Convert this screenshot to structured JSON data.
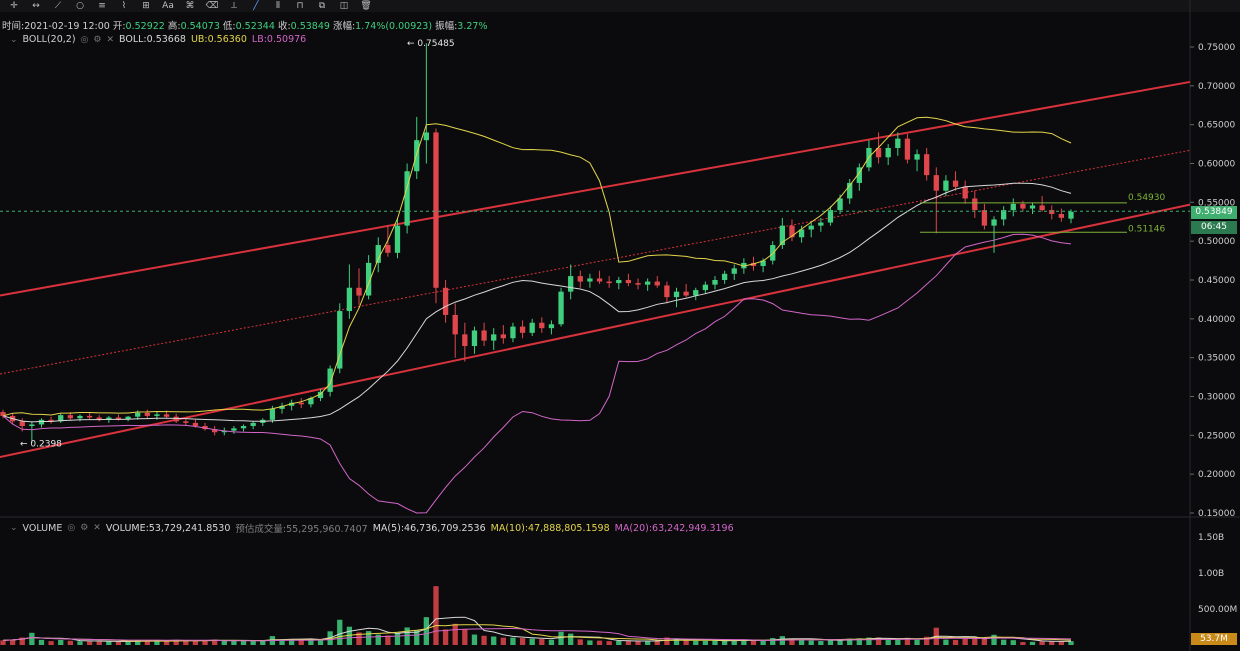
{
  "toolbar": {
    "tools": [
      {
        "name": "crosshair-icon",
        "glyph": "✛"
      },
      {
        "name": "horizontal-line-icon",
        "glyph": "↔"
      },
      {
        "name": "trend-line-icon",
        "glyph": "⟋"
      },
      {
        "name": "circle-icon",
        "glyph": "○"
      },
      {
        "name": "fib-icon",
        "glyph": "≡"
      },
      {
        "name": "wave-icon",
        "glyph": "⌇"
      },
      {
        "name": "measure-icon",
        "glyph": "⊞"
      },
      {
        "name": "text-icon",
        "glyph": "Aa"
      },
      {
        "name": "pattern-icon",
        "glyph": "⌘"
      },
      {
        "name": "eraser-icon",
        "glyph": "⌫"
      },
      {
        "name": "ruler-icon",
        "glyph": "⟂"
      },
      {
        "name": "line-tool-icon",
        "glyph": "╱"
      },
      {
        "name": "candles-icon",
        "glyph": "⦀"
      },
      {
        "name": "lock-icon",
        "glyph": "⊓"
      },
      {
        "name": "copy-icon",
        "glyph": "⧉"
      },
      {
        "name": "layers-icon",
        "glyph": "◫"
      },
      {
        "name": "trash-icon",
        "glyph": "🗑"
      }
    ]
  },
  "ohlc": {
    "time_label": "时间:",
    "time": "2021-02-19 12:00",
    "open_label": "开:",
    "open": "0.52922",
    "high_label": "高:",
    "high": "0.54073",
    "low_label": "低:",
    "low": "0.52344",
    "close_label": "收:",
    "close": "0.53849",
    "change_label": "涨幅:",
    "change": "1.74%(0.00923)",
    "amp_label": "振幅:",
    "amp": "3.27%"
  },
  "boll": {
    "name": "BOLL(20,2)",
    "boll_label": "BOLL:",
    "boll": "0.53668",
    "ub_label": "UB:",
    "ub": "0.56360",
    "lb_label": "LB:",
    "lb": "0.50976"
  },
  "volume": {
    "name": "VOLUME",
    "vol_label": "VOLUME:",
    "vol": "53,729,241.8530",
    "est_label": "预估成交量:",
    "est": "55,295,960.7407",
    "ma5_label": "MA(5):",
    "ma5": "46,736,709.2536",
    "ma10_label": "MA(10):",
    "ma10": "47,888,805.1598",
    "ma20_label": "MA(20):",
    "ma20": "63,242,949.3196",
    "axis": [
      "1.50B",
      "1.00B",
      "500.00M"
    ],
    "current_tag": "53.7M"
  },
  "price_axis": [
    "0.75000",
    "0.70000",
    "0.65000",
    "0.60000",
    "0.55000",
    "0.50000",
    "0.45000",
    "0.40000",
    "0.35000",
    "0.30000",
    "0.25000",
    "0.20000",
    "0.15000"
  ],
  "annotations": {
    "high_marker": "← 0.75485",
    "low_marker": "← 0.2398",
    "fib_upper": "0.54930",
    "fib_lower": "0.51146"
  },
  "price_tag": {
    "current": "0.53849",
    "countdown": "06:45"
  },
  "colors": {
    "up": "#3fcf7f",
    "down": "#e0474c",
    "ub": "#e3d54a",
    "mid": "#d8d8d8",
    "lb": "#d266c9",
    "channel": "#d8323c",
    "fib": "#7fb23a"
  },
  "chart_data": {
    "type": "candlestick",
    "ylim": [
      0.15,
      0.76
    ],
    "candles": [
      [
        0.28,
        0.283,
        0.272,
        0.275
      ],
      [
        0.275,
        0.278,
        0.265,
        0.268
      ],
      [
        0.268,
        0.272,
        0.255,
        0.262
      ],
      [
        0.262,
        0.268,
        0.24,
        0.264
      ],
      [
        0.264,
        0.272,
        0.26,
        0.27
      ],
      [
        0.27,
        0.274,
        0.265,
        0.268
      ],
      [
        0.268,
        0.278,
        0.266,
        0.276
      ],
      [
        0.276,
        0.28,
        0.27,
        0.272
      ],
      [
        0.272,
        0.277,
        0.268,
        0.275
      ],
      [
        0.275,
        0.28,
        0.271,
        0.273
      ],
      [
        0.273,
        0.276,
        0.268,
        0.27
      ],
      [
        0.27,
        0.275,
        0.266,
        0.273
      ],
      [
        0.273,
        0.277,
        0.269,
        0.271
      ],
      [
        0.271,
        0.275,
        0.268,
        0.274
      ],
      [
        0.274,
        0.282,
        0.27,
        0.279
      ],
      [
        0.279,
        0.283,
        0.272,
        0.275
      ],
      [
        0.275,
        0.28,
        0.27,
        0.277
      ],
      [
        0.277,
        0.282,
        0.272,
        0.274
      ],
      [
        0.274,
        0.278,
        0.266,
        0.268
      ],
      [
        0.268,
        0.272,
        0.262,
        0.266
      ],
      [
        0.266,
        0.27,
        0.26,
        0.262
      ],
      [
        0.262,
        0.266,
        0.256,
        0.258
      ],
      [
        0.258,
        0.262,
        0.25,
        0.254
      ],
      [
        0.254,
        0.26,
        0.25,
        0.256
      ],
      [
        0.256,
        0.262,
        0.252,
        0.259
      ],
      [
        0.259,
        0.264,
        0.255,
        0.262
      ],
      [
        0.262,
        0.268,
        0.258,
        0.266
      ],
      [
        0.266,
        0.272,
        0.262,
        0.27
      ],
      [
        0.27,
        0.288,
        0.266,
        0.284
      ],
      [
        0.284,
        0.292,
        0.278,
        0.288
      ],
      [
        0.288,
        0.296,
        0.282,
        0.292
      ],
      [
        0.292,
        0.298,
        0.285,
        0.29
      ],
      [
        0.29,
        0.3,
        0.286,
        0.298
      ],
      [
        0.298,
        0.31,
        0.294,
        0.306
      ],
      [
        0.306,
        0.34,
        0.3,
        0.336
      ],
      [
        0.336,
        0.42,
        0.33,
        0.41
      ],
      [
        0.41,
        0.47,
        0.4,
        0.44
      ],
      [
        0.44,
        0.465,
        0.418,
        0.43
      ],
      [
        0.43,
        0.482,
        0.425,
        0.472
      ],
      [
        0.472,
        0.505,
        0.46,
        0.495
      ],
      [
        0.495,
        0.52,
        0.48,
        0.485
      ],
      [
        0.485,
        0.53,
        0.478,
        0.52
      ],
      [
        0.52,
        0.6,
        0.51,
        0.59
      ],
      [
        0.59,
        0.66,
        0.58,
        0.63
      ],
      [
        0.63,
        0.755,
        0.6,
        0.64
      ],
      [
        0.64,
        0.645,
        0.42,
        0.44
      ],
      [
        0.44,
        0.45,
        0.395,
        0.405
      ],
      [
        0.405,
        0.42,
        0.35,
        0.38
      ],
      [
        0.38,
        0.395,
        0.345,
        0.365
      ],
      [
        0.365,
        0.39,
        0.355,
        0.385
      ],
      [
        0.385,
        0.395,
        0.365,
        0.372
      ],
      [
        0.372,
        0.388,
        0.36,
        0.38
      ],
      [
        0.38,
        0.392,
        0.368,
        0.375
      ],
      [
        0.375,
        0.395,
        0.37,
        0.39
      ],
      [
        0.39,
        0.398,
        0.375,
        0.382
      ],
      [
        0.382,
        0.4,
        0.378,
        0.395
      ],
      [
        0.395,
        0.402,
        0.382,
        0.388
      ],
      [
        0.388,
        0.398,
        0.38,
        0.393
      ],
      [
        0.393,
        0.44,
        0.39,
        0.435
      ],
      [
        0.435,
        0.47,
        0.425,
        0.455
      ],
      [
        0.455,
        0.462,
        0.44,
        0.448
      ],
      [
        0.448,
        0.458,
        0.44,
        0.452
      ],
      [
        0.452,
        0.462,
        0.445,
        0.448
      ],
      [
        0.448,
        0.455,
        0.44,
        0.446
      ],
      [
        0.446,
        0.454,
        0.438,
        0.45
      ],
      [
        0.45,
        0.458,
        0.442,
        0.446
      ],
      [
        0.446,
        0.452,
        0.438,
        0.444
      ],
      [
        0.444,
        0.452,
        0.436,
        0.448
      ],
      [
        0.448,
        0.455,
        0.44,
        0.443
      ],
      [
        0.443,
        0.448,
        0.42,
        0.428
      ],
      [
        0.428,
        0.44,
        0.415,
        0.435
      ],
      [
        0.435,
        0.445,
        0.428,
        0.43
      ],
      [
        0.43,
        0.44,
        0.424,
        0.437
      ],
      [
        0.437,
        0.448,
        0.432,
        0.444
      ],
      [
        0.444,
        0.455,
        0.438,
        0.45
      ],
      [
        0.45,
        0.462,
        0.445,
        0.458
      ],
      [
        0.458,
        0.47,
        0.45,
        0.465
      ],
      [
        0.465,
        0.478,
        0.458,
        0.472
      ],
      [
        0.472,
        0.48,
        0.462,
        0.468
      ],
      [
        0.468,
        0.478,
        0.46,
        0.475
      ],
      [
        0.475,
        0.5,
        0.47,
        0.495
      ],
      [
        0.495,
        0.53,
        0.49,
        0.52
      ],
      [
        0.52,
        0.528,
        0.5,
        0.505
      ],
      [
        0.505,
        0.52,
        0.498,
        0.515
      ],
      [
        0.515,
        0.525,
        0.505,
        0.52
      ],
      [
        0.52,
        0.53,
        0.512,
        0.524
      ],
      [
        0.524,
        0.545,
        0.52,
        0.54
      ],
      [
        0.54,
        0.56,
        0.535,
        0.555
      ],
      [
        0.555,
        0.58,
        0.548,
        0.575
      ],
      [
        0.575,
        0.6,
        0.565,
        0.595
      ],
      [
        0.595,
        0.63,
        0.59,
        0.62
      ],
      [
        0.62,
        0.64,
        0.6,
        0.608
      ],
      [
        0.608,
        0.625,
        0.598,
        0.62
      ],
      [
        0.62,
        0.64,
        0.61,
        0.632
      ],
      [
        0.632,
        0.638,
        0.6,
        0.605
      ],
      [
        0.605,
        0.618,
        0.59,
        0.612
      ],
      [
        0.612,
        0.62,
        0.578,
        0.585
      ],
      [
        0.585,
        0.595,
        0.51,
        0.565
      ],
      [
        0.565,
        0.585,
        0.558,
        0.578
      ],
      [
        0.578,
        0.59,
        0.565,
        0.57
      ],
      [
        0.57,
        0.578,
        0.548,
        0.555
      ],
      [
        0.555,
        0.565,
        0.53,
        0.54
      ],
      [
        0.54,
        0.548,
        0.515,
        0.52
      ],
      [
        0.52,
        0.532,
        0.485,
        0.528
      ],
      [
        0.528,
        0.545,
        0.52,
        0.54
      ],
      [
        0.54,
        0.555,
        0.532,
        0.548
      ],
      [
        0.548,
        0.552,
        0.538,
        0.542
      ],
      [
        0.542,
        0.55,
        0.535,
        0.546
      ],
      [
        0.546,
        0.558,
        0.538,
        0.54
      ],
      [
        0.54,
        0.546,
        0.528,
        0.535
      ],
      [
        0.535,
        0.542,
        0.525,
        0.53
      ],
      [
        0.529,
        0.541,
        0.523,
        0.538
      ]
    ]
  }
}
